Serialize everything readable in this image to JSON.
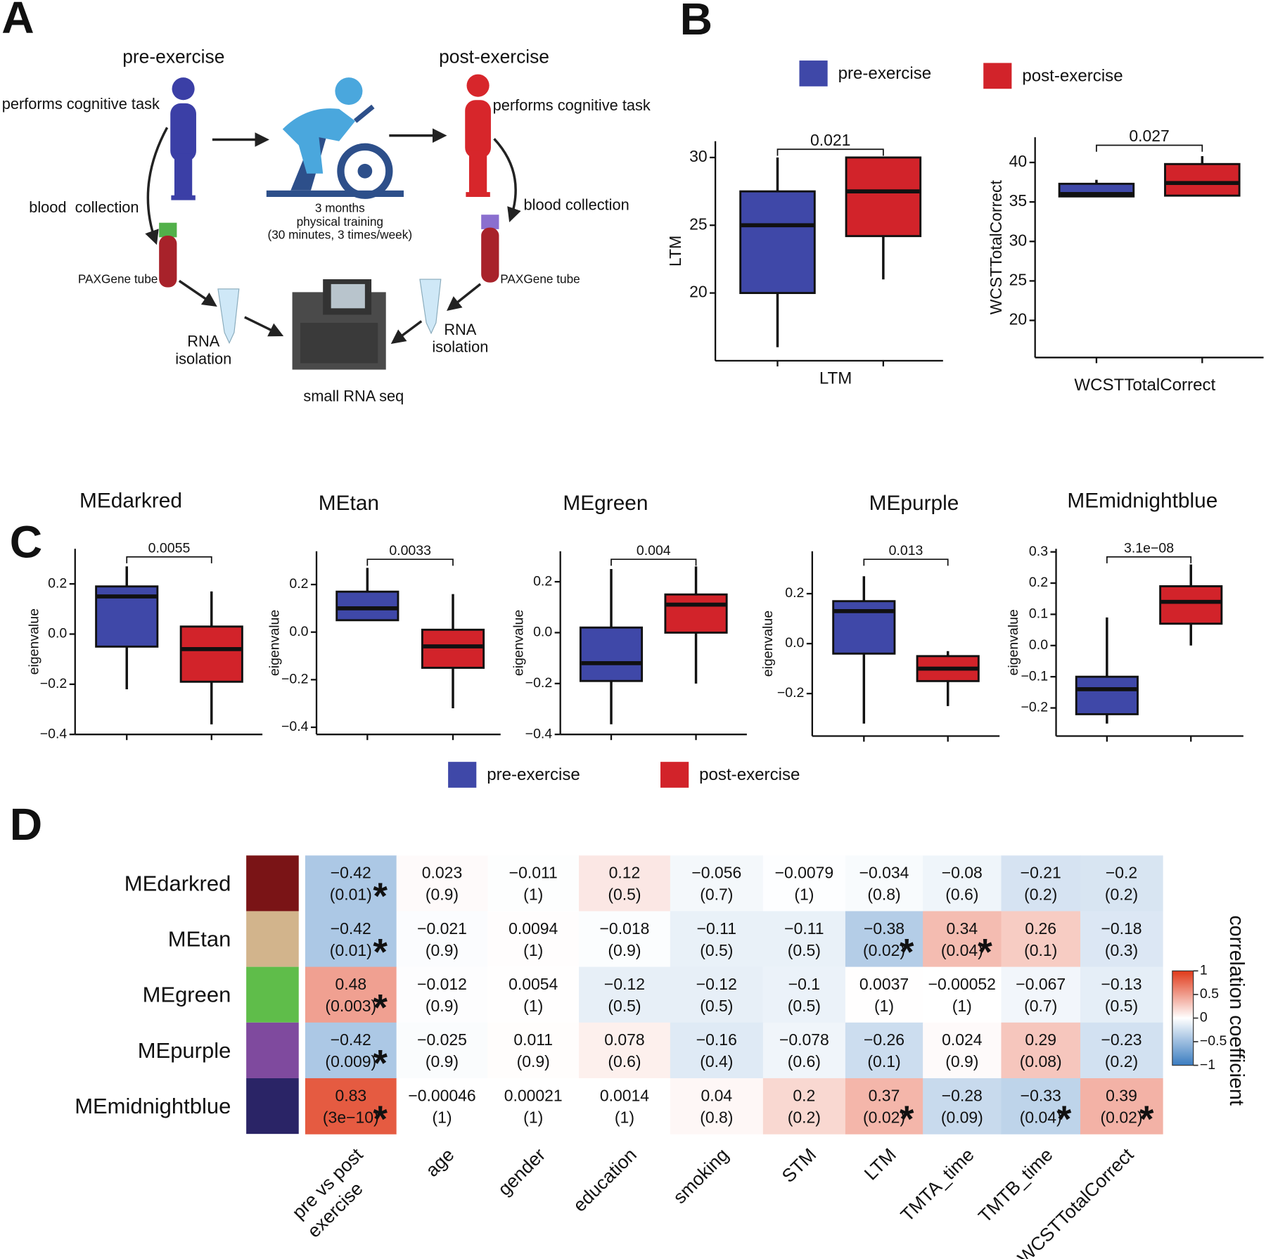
{
  "panel_labels": [
    "A",
    "B",
    "C",
    "D"
  ],
  "diagram": {
    "pre_label": "pre-exercise",
    "post_label": "post-exercise",
    "task_left": "performs cognitive task",
    "task_right": "performs cognitive task",
    "blood_left": "blood  collection",
    "blood_right": "blood collection",
    "training": [
      "3 months",
      "physical training",
      "(30 minutes, 3 times/week)"
    ],
    "tube_left": "PAXGene tube",
    "tube_right": "PAXGene tube",
    "rna_left": [
      "RNA",
      "isolation"
    ],
    "rna_right": [
      "RNA",
      "isolation"
    ],
    "seq": "small RNA seq"
  },
  "chart_data": [
    {
      "type": "box",
      "y_label": "LTM",
      "x_label": "LTM",
      "annotation": "0.021",
      "ylim": [
        15,
        31.2
      ],
      "yticks": [
        20,
        25,
        30
      ],
      "series": [
        {
          "name": "pre-exercise",
          "color": "#3f48a8",
          "values": [
            16,
            20,
            25,
            27.5,
            30
          ]
        },
        {
          "name": "post-exercise",
          "color": "#d2232a",
          "values": [
            21,
            24.2,
            27.5,
            30,
            30
          ]
        }
      ]
    },
    {
      "type": "box",
      "y_label": "WCSTTotalCorrect",
      "x_label": "WCSTTotalCorrect",
      "annotation": "0.027",
      "ylim": [
        15.3,
        43.2
      ],
      "yticks": [
        20,
        25,
        30,
        35,
        40
      ],
      "series": [
        {
          "name": "pre-exercise",
          "color": "#3f48a8",
          "values": [
            35.7,
            35.7,
            36,
            37.3,
            37.8
          ]
        },
        {
          "name": "post-exercise",
          "color": "#d2232a",
          "values": [
            35.8,
            35.8,
            37.4,
            39.8,
            40.8
          ]
        }
      ]
    },
    {
      "type": "box",
      "title": "MEdarkred",
      "y_label": "eigenvalue",
      "annotation": "0.0055",
      "ylim": [
        -0.4,
        0.34
      ],
      "yticks": [
        {
          "value": -0.4,
          "label": "−0.4"
        },
        {
          "value": -0.2,
          "label": "−0.2"
        },
        {
          "value": 0,
          "label": "0.0"
        },
        0.2
      ],
      "series": [
        {
          "name": "pre-exercise",
          "color": "#3f48a8",
          "values": [
            -0.22,
            -0.05,
            0.15,
            0.19,
            0.27
          ]
        },
        {
          "name": "post-exercise",
          "color": "#d2232a",
          "values": [
            -0.36,
            -0.19,
            -0.06,
            0.03,
            0.17
          ]
        }
      ]
    },
    {
      "type": "box",
      "title": "MEtan",
      "y_label": "eigenvalue",
      "annotation": "0.0033",
      "ylim": [
        -0.43,
        0.34
      ],
      "yticks": [
        {
          "value": -0.4,
          "label": "−0.4"
        },
        {
          "value": -0.2,
          "label": "−0.2"
        },
        {
          "value": 0,
          "label": "0.0"
        },
        0.2
      ],
      "series": [
        {
          "name": "pre-exercise",
          "color": "#3f48a8",
          "values": [
            0.05,
            0.05,
            0.1,
            0.17,
            0.27
          ]
        },
        {
          "name": "post-exercise",
          "color": "#d2232a",
          "values": [
            -0.32,
            -0.15,
            -0.06,
            0.01,
            0.16
          ]
        }
      ]
    },
    {
      "type": "box",
      "title": "MEgreen",
      "y_label": "eigenvalue",
      "annotation": "0.004",
      "ylim": [
        -0.4,
        0.32
      ],
      "yticks": [
        {
          "value": -0.4,
          "label": "−0.4"
        },
        {
          "value": -0.2,
          "label": "−0.2"
        },
        {
          "value": 0,
          "label": "0.0"
        },
        0.2
      ],
      "series": [
        {
          "name": "pre-exercise",
          "color": "#3f48a8",
          "values": [
            -0.36,
            -0.19,
            -0.12,
            0.02,
            0.25
          ]
        },
        {
          "name": "post-exercise",
          "color": "#d2232a",
          "values": [
            -0.2,
            0,
            0.11,
            0.15,
            0.26
          ]
        }
      ]
    },
    {
      "type": "box",
      "title": "MEpurple",
      "y_label": "eigenvalue",
      "annotation": "0.013",
      "ylim": [
        -0.37,
        0.37
      ],
      "yticks": [
        {
          "value": -0.2,
          "label": "−0.2"
        },
        {
          "value": 0,
          "label": "0.0"
        },
        0.2
      ],
      "series": [
        {
          "name": "pre-exercise",
          "color": "#3f48a8",
          "values": [
            -0.32,
            -0.04,
            0.13,
            0.17,
            0.27
          ]
        },
        {
          "name": "post-exercise",
          "color": "#d2232a",
          "values": [
            -0.25,
            -0.15,
            -0.1,
            -0.05,
            -0.03
          ]
        }
      ]
    },
    {
      "type": "box",
      "title": "MEmidnightblue",
      "y_label": "eigenvalue",
      "annotation": "3.1e−08",
      "ylim": [
        -0.29,
        0.31
      ],
      "yticks": [
        {
          "value": -0.2,
          "label": "−0.2"
        },
        {
          "value": -0.1,
          "label": "−0.1"
        },
        {
          "value": 0,
          "label": "0.0"
        },
        0.1,
        0.2,
        0.3
      ],
      "series": [
        {
          "name": "pre-exercise",
          "color": "#3f48a8",
          "values": [
            -0.25,
            -0.22,
            -0.14,
            -0.1,
            0.09
          ]
        },
        {
          "name": "post-exercise",
          "color": "#d2232a",
          "values": [
            0,
            0.07,
            0.14,
            0.19,
            0.26
          ]
        }
      ]
    },
    {
      "type": "heatmap",
      "rows": [
        "MEdarkred",
        "MEtan",
        "MEgreen",
        "MEpurple",
        "MEmidnightblue"
      ],
      "row_colors": [
        "#7a1416",
        "#d2b48c",
        "#5fbd4a",
        "#7f4a9e",
        "#2a2466"
      ],
      "columns": [
        [
          "pre vs post",
          "exercise"
        ],
        [
          "age"
        ],
        [
          "gender"
        ],
        [
          "education"
        ],
        [
          "smoking"
        ],
        [
          "STM"
        ],
        [
          "LTM"
        ],
        [
          "TMTA_time"
        ],
        [
          "TMTB_time"
        ],
        [
          "WCSTTotalCorrect"
        ]
      ],
      "values": [
        [
          -0.42,
          0.023,
          -0.011,
          0.12,
          -0.056,
          -0.0079,
          -0.034,
          -0.08,
          -0.21,
          -0.2
        ],
        [
          -0.42,
          -0.021,
          0.0094,
          -0.018,
          -0.11,
          -0.11,
          -0.38,
          0.34,
          0.26,
          -0.18
        ],
        [
          0.48,
          -0.012,
          0.0054,
          -0.12,
          -0.12,
          -0.1,
          0.0037,
          -0.00052,
          -0.067,
          -0.13
        ],
        [
          -0.42,
          -0.025,
          0.011,
          0.078,
          -0.16,
          -0.078,
          -0.26,
          0.024,
          0.29,
          -0.23
        ],
        [
          0.83,
          -0.00046,
          0.00021,
          0.0014,
          0.04,
          0.2,
          0.37,
          -0.28,
          -0.33,
          0.39
        ]
      ],
      "value_labels": [
        [
          "−0.42",
          "0.023",
          "−0.011",
          "0.12",
          "−0.056",
          "−0.0079",
          "−0.034",
          "−0.08",
          "−0.21",
          "−0.2"
        ],
        [
          "−0.42",
          "−0.021",
          "0.0094",
          "−0.018",
          "−0.11",
          "−0.11",
          "−0.38",
          "0.34",
          "0.26",
          "−0.18"
        ],
        [
          "0.48",
          "−0.012",
          "0.0054",
          "−0.12",
          "−0.12",
          "−0.1",
          "0.0037",
          "−0.00052",
          "−0.067",
          "−0.13"
        ],
        [
          "−0.42",
          "−0.025",
          "0.011",
          "0.078",
          "−0.16",
          "−0.078",
          "−0.26",
          "0.024",
          "0.29",
          "−0.23"
        ],
        [
          "0.83",
          "−0.00046",
          "0.00021",
          "0.0014",
          "0.04",
          "0.2",
          "0.37",
          "−0.28",
          "−0.33",
          "0.39"
        ]
      ],
      "p_values": [
        [
          0.01,
          0.9,
          1,
          0.5,
          0.7,
          1,
          0.8,
          0.6,
          0.2,
          0.2
        ],
        [
          0.01,
          0.9,
          1,
          0.9,
          0.5,
          0.5,
          0.02,
          0.04,
          0.1,
          0.3
        ],
        [
          0.003,
          0.9,
          1,
          0.5,
          0.5,
          0.5,
          1,
          1,
          0.7,
          0.5
        ],
        [
          0.009,
          0.9,
          0.9,
          0.6,
          0.4,
          0.6,
          0.1,
          0.9,
          0.08,
          0.2
        ],
        [
          3e-10,
          1,
          1,
          1,
          0.8,
          0.2,
          0.02,
          0.09,
          0.04,
          0.02
        ]
      ],
      "p_value_labels": [
        [
          "(0.01)",
          "(0.9)",
          "(1)",
          "(0.5)",
          "(0.7)",
          "(1)",
          "(0.8)",
          "(0.6)",
          "(0.2)",
          "(0.2)"
        ],
        [
          "(0.01)",
          "(0.9)",
          "(1)",
          "(0.9)",
          "(0.5)",
          "(0.5)",
          "(0.02)",
          "(0.04)",
          "(0.1)",
          "(0.3)"
        ],
        [
          "(0.003)",
          "(0.9)",
          "(1)",
          "(0.5)",
          "(0.5)",
          "(0.5)",
          "(1)",
          "(1)",
          "(0.7)",
          "(0.5)"
        ],
        [
          "(0.009)",
          "(0.9)",
          "(0.9)",
          "(0.6)",
          "(0.4)",
          "(0.6)",
          "(0.1)",
          "(0.9)",
          "(0.08)",
          "(0.2)"
        ],
        [
          "(3e−10)",
          "(1)",
          "(1)",
          "(1)",
          "(0.8)",
          "(0.2)",
          "(0.02)",
          "(0.09)",
          "(0.04)",
          "(0.02)"
        ]
      ],
      "significant": [
        [
          true,
          false,
          false,
          false,
          false,
          false,
          false,
          false,
          false,
          false
        ],
        [
          true,
          false,
          false,
          false,
          false,
          false,
          true,
          true,
          false,
          false
        ],
        [
          true,
          false,
          false,
          false,
          false,
          false,
          false,
          false,
          false,
          false
        ],
        [
          true,
          false,
          false,
          false,
          false,
          false,
          false,
          false,
          false,
          false
        ],
        [
          true,
          false,
          false,
          false,
          false,
          false,
          true,
          false,
          true,
          true
        ]
      ],
      "star": "*",
      "colorbar": {
        "label": "correlation coefficient",
        "lim": [
          -1,
          1
        ],
        "ticks": [
          1,
          0.5,
          0,
          {
            "value": -0.5,
            "label": "−0.5"
          },
          {
            "value": -1,
            "label": "−1"
          }
        ]
      }
    }
  ]
}
